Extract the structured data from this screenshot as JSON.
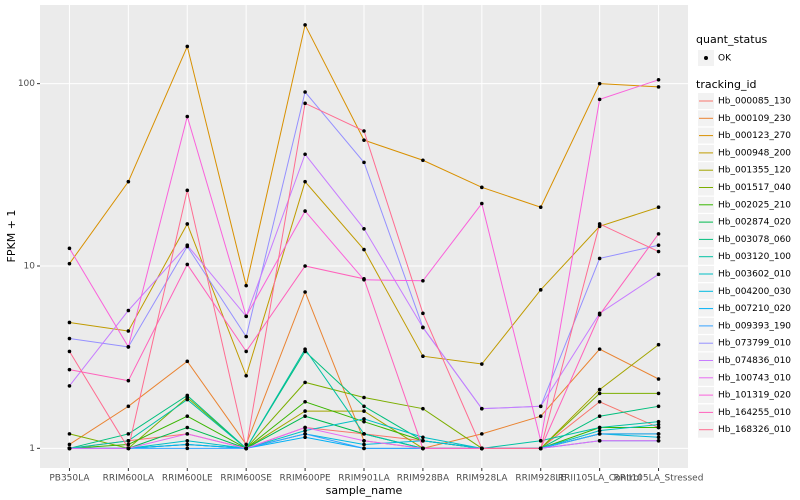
{
  "chart_data": {
    "type": "line",
    "x_label": "sample_name",
    "y_label": "FPKM + 1",
    "y_scale": "log",
    "grid": true,
    "categories": [
      "PB350LA",
      "RRIM600LA",
      "RRIM600LE",
      "RRIM600SE",
      "RRIM600PE",
      "RRIM901LA",
      "RRIM928BA",
      "RRIM928LA",
      "RRIM928LE",
      "RRII105LA_Control",
      "RRII105LA_Stressed"
    ],
    "ylim": [
      0.78,
      270
    ],
    "yticks": [
      1,
      10,
      100
    ],
    "status_legend_title": "quant_status",
    "status_legend_entry": "OK",
    "legend_title": "tracking_id",
    "series": [
      {
        "name": "Hb_000085_130",
        "color": "#F8766D",
        "values": [
          1.0,
          1.1,
          1.2,
          1.0,
          1.3,
          1.2,
          1.1,
          1.0,
          1.0,
          1.8,
          1.3
        ]
      },
      {
        "name": "Hb_000109_230",
        "color": "#EA8331",
        "values": [
          1.05,
          1.7,
          3.0,
          1.05,
          7.2,
          1.1,
          1.0,
          1.2,
          1.5,
          3.5,
          2.4
        ]
      },
      {
        "name": "Hb_000123_270",
        "color": "#D89000",
        "values": [
          10.3,
          29,
          160,
          7.8,
          210,
          49,
          38,
          27,
          21,
          100,
          96
        ]
      },
      {
        "name": "Hb_000948_200",
        "color": "#C09B00",
        "values": [
          4.9,
          4.4,
          17,
          2.5,
          29,
          12.3,
          3.2,
          2.9,
          7.4,
          16.5,
          21
        ]
      },
      {
        "name": "Hb_001355_120",
        "color": "#A3A500",
        "values": [
          1.0,
          1.0,
          1.05,
          1.0,
          1.6,
          1.6,
          1.0,
          1.0,
          1.0,
          2.1,
          3.7
        ]
      },
      {
        "name": "Hb_001517_040",
        "color": "#7CAE00",
        "values": [
          1.2,
          1.0,
          1.9,
          1.0,
          2.3,
          1.9,
          1.65,
          1.0,
          1.0,
          2.0,
          2.0
        ]
      },
      {
        "name": "Hb_002025_210",
        "color": "#39B600",
        "values": [
          1.0,
          1.05,
          1.5,
          1.0,
          1.8,
          1.4,
          1.1,
          1.0,
          1.0,
          1.3,
          1.3
        ]
      },
      {
        "name": "Hb_002874_020",
        "color": "#00BB4E",
        "values": [
          1.0,
          1.0,
          1.3,
          1.0,
          1.5,
          1.2,
          1.0,
          1.0,
          1.0,
          1.2,
          1.2
        ]
      },
      {
        "name": "Hb_003078_060",
        "color": "#00BF7D",
        "values": [
          1.0,
          1.2,
          1.95,
          1.0,
          3.4,
          1.7,
          1.1,
          1.0,
          1.0,
          1.5,
          1.7
        ]
      },
      {
        "name": "Hb_003120_100",
        "color": "#00C1A3",
        "values": [
          1.0,
          1.1,
          1.85,
          1.0,
          3.5,
          1.2,
          1.0,
          1.0,
          1.1,
          1.3,
          1.4
        ]
      },
      {
        "name": "Hb_003602_010",
        "color": "#00BFC4",
        "values": [
          1.0,
          1.0,
          1.1,
          1.0,
          1.25,
          1.45,
          1.15,
          1.0,
          1.0,
          1.25,
          1.35
        ]
      },
      {
        "name": "Hb_004200_030",
        "color": "#00BAE0",
        "values": [
          1.0,
          1.0,
          1.05,
          1.0,
          1.2,
          1.05,
          1.1,
          1.0,
          1.0,
          1.2,
          1.15
        ]
      },
      {
        "name": "Hb_007210_020",
        "color": "#00B0F6",
        "values": [
          1.0,
          1.0,
          1.05,
          1.0,
          1.15,
          1.0,
          1.0,
          1.0,
          1.0,
          1.1,
          1.1
        ]
      },
      {
        "name": "Hb_009393_190",
        "color": "#35A2FF",
        "values": [
          1.0,
          1.0,
          1.0,
          1.0,
          1.2,
          1.0,
          1.0,
          1.0,
          1.0,
          1.2,
          1.2
        ]
      },
      {
        "name": "Hb_073799_010",
        "color": "#9590FF",
        "values": [
          4.0,
          3.6,
          12.8,
          4.1,
          90,
          37,
          4.6,
          1.65,
          1.7,
          11,
          13
        ]
      },
      {
        "name": "Hb_074836_010",
        "color": "#C77CFF",
        "values": [
          2.2,
          5.7,
          13,
          5.3,
          41,
          16,
          4.6,
          1.65,
          1.7,
          5.5,
          9
        ]
      },
      {
        "name": "Hb_100743_010",
        "color": "#E76BF3",
        "values": [
          1.0,
          1.0,
          1.2,
          1.0,
          1.3,
          1.1,
          1.0,
          1.0,
          1.0,
          1.1,
          1.1
        ]
      },
      {
        "name": "Hb_101319_020",
        "color": "#FA62DB",
        "values": [
          12.5,
          3.6,
          66,
          5.3,
          20,
          8.4,
          8.3,
          22,
          1.1,
          82,
          105
        ]
      },
      {
        "name": "Hb_164255_010",
        "color": "#FF62BC",
        "values": [
          2.7,
          2.35,
          10.2,
          3.4,
          10,
          8.5,
          1.0,
          1.0,
          1.0,
          5.4,
          15
        ]
      },
      {
        "name": "Hb_168326_010",
        "color": "#FF6C91",
        "values": [
          3.4,
          1.0,
          26,
          1.0,
          78,
          55,
          5.5,
          1.0,
          1.0,
          17,
          12
        ]
      }
    ]
  }
}
